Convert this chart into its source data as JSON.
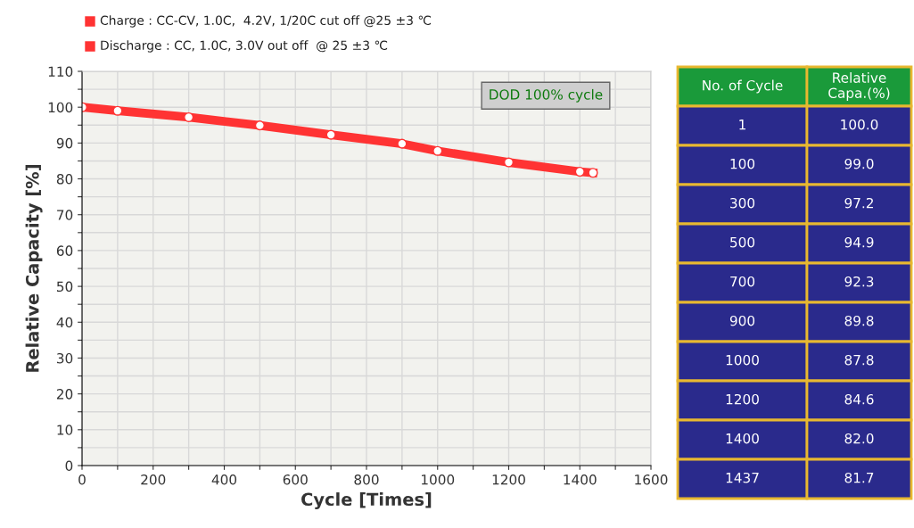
{
  "chart_data": [
    {
      "type": "line",
      "xlabel": "Cycle [Times]",
      "ylabel": "Relative Capacity [%]",
      "x": [
        1,
        100,
        300,
        500,
        700,
        900,
        1000,
        1200,
        1400,
        1437
      ],
      "series": [
        {
          "color": "#ff3333",
          "values": [
            100.0,
            99.0,
            97.2,
            94.9,
            92.3,
            89.8,
            87.8,
            84.6,
            82.0,
            81.7
          ]
        }
      ],
      "xlim": [
        0,
        1600
      ],
      "xticks": [
        0,
        {
          "value": 100,
          "label": null
        },
        200,
        {
          "value": 300,
          "label": null
        },
        400,
        {
          "value": 500,
          "label": null
        },
        600,
        {
          "value": 700,
          "label": null
        },
        800,
        {
          "value": 900,
          "label": null
        },
        1000,
        {
          "value": 1100,
          "label": null
        },
        1200,
        {
          "value": 1300,
          "label": null
        },
        1400,
        {
          "value": 1500,
          "label": null
        },
        1600
      ],
      "ylim": [
        0,
        110
      ],
      "yticks": [
        0,
        {
          "value": 5,
          "label": null
        },
        10,
        {
          "value": 15,
          "label": null
        },
        20,
        {
          "value": 25,
          "label": null
        },
        30,
        {
          "value": 35,
          "label": null
        },
        40,
        {
          "value": 45,
          "label": null
        },
        50,
        {
          "value": 55,
          "label": null
        },
        60,
        {
          "value": 65,
          "label": null
        },
        70,
        {
          "value": 75,
          "label": null
        },
        80,
        {
          "value": 85,
          "label": null
        },
        90,
        {
          "value": 95,
          "label": null
        },
        100,
        {
          "value": 105,
          "label": null
        },
        110
      ],
      "grid": true,
      "marker": "circle",
      "line_style": "solid",
      "annotations": [
        "Charge : CC-CV, 1.0C,  4.2V, 1/20C cut off @25 ±3 ℃",
        "Discharge : CC, 1.0C, 3.0V out off  @ 25 ±3 ℃",
        "DOD 100% cycle"
      ]
    },
    {
      "type": "other",
      "annotations": [
        "No. of Cycle",
        "Relative Capa.(%)",
        "1",
        "100.0",
        "100",
        "99.0",
        "300",
        "97.2",
        "500",
        "94.9",
        "700",
        "92.3",
        "900",
        "89.8",
        "1000",
        "87.8",
        "1200",
        "84.6",
        "1400",
        "82.0",
        "1437",
        "81.7"
      ]
    }
  ]
}
